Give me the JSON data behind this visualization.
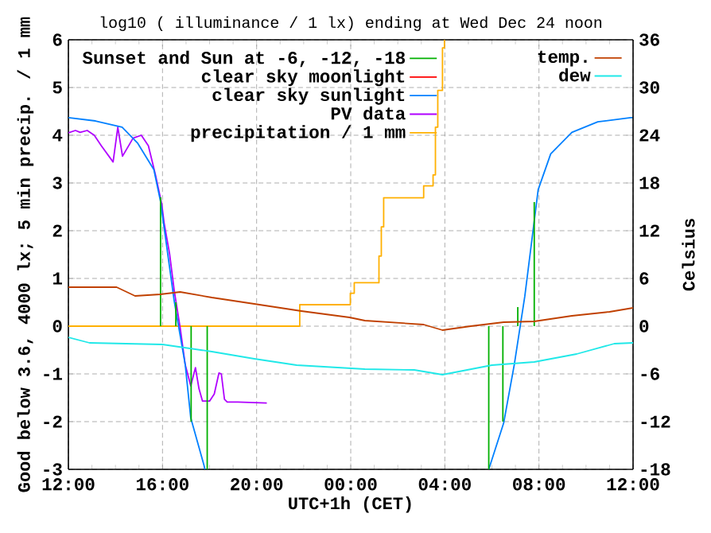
{
  "chart_data": {
    "type": "line",
    "title": "log10 ( illuminance / 1 lx) ending at Wed Dec 24 noon",
    "xlabel": "UTC+1h (CET)",
    "ylabel": "Good below 3.6, 4000 lx; 5 min precip. / 1 mm",
    "y2label": "Celsius",
    "xlim": [
      "--12-23T12:00",
      "--12-24T12:00"
    ],
    "xticks": [
      {
        "value": "--12-23T12:00",
        "label": "12:00"
      },
      {
        "value": "--12-23T16:00",
        "label": "16:00"
      },
      {
        "value": "--12-23T20:00",
        "label": "20:00"
      },
      {
        "value": "--12-24T00:00",
        "label": "00:00"
      },
      {
        "value": "--12-24T04:00",
        "label": "04:00"
      },
      {
        "value": "--12-24T08:00",
        "label": "08:00"
      },
      {
        "value": "--12-24T12:00",
        "label": "12:00"
      }
    ],
    "ylim": [
      -3,
      6
    ],
    "yticks": [
      -3,
      -2,
      -1,
      0,
      1,
      2,
      3,
      4,
      5,
      6
    ],
    "y2lim": [
      -18,
      36
    ],
    "y2ticks": [
      -18,
      -12,
      -6,
      0,
      6,
      12,
      18,
      24,
      30,
      36
    ],
    "grid": true,
    "legend": "top",
    "series": [
      {
        "name": "Sunset and Sun at -6, -12, -18",
        "color": "#00b000",
        "x": [
          "--12-23T15:55",
          "--12-23T15:55",
          null,
          "--12-23T16:34",
          "--12-23T16:34",
          null,
          "--12-23T17:13",
          "--12-23T17:13",
          null,
          "--12-23T17:54",
          "--12-23T17:54",
          null,
          "--12-24T05:52",
          "--12-24T05:52",
          null,
          "--12-24T06:28",
          "--12-24T06:28",
          null,
          "--12-24T07:06",
          "--12-24T07:06",
          null,
          "--12-24T07:48",
          "--12-24T07:48"
        ],
        "values": [
          0,
          2.7,
          null,
          0,
          0.5,
          null,
          0,
          -2,
          null,
          0,
          -3,
          null,
          0,
          -3,
          null,
          0,
          -2,
          null,
          0,
          0.4,
          null,
          0,
          2.6
        ]
      },
      {
        "name": "clear sky moonlight",
        "color": "#ff0000"
      },
      {
        "name": "clear sky sunlight",
        "color": "#0080ff",
        "x": [
          "--12-23T12:00",
          "--12-23T13:09",
          "--12-23T14:17",
          "--12-23T14:57",
          "--12-23T15:38",
          "--12-23T15:55",
          "--12-23T16:30",
          "--12-23T16:58",
          "--12-23T17:12",
          "--12-23T17:46",
          "--12-23T17:48",
          null,
          "--12-24T05:52",
          "--12-24T06:30",
          "--12-24T06:57",
          "--12-24T07:24",
          "--12-24T07:58",
          "--12-24T08:30",
          "--12-24T09:24",
          "--12-24T10:30",
          "--12-24T11:54",
          "--12-24T12:00"
        ],
        "values": [
          4.37,
          4.3,
          4.17,
          3.83,
          3.28,
          2.61,
          0.52,
          -0.81,
          -1.92,
          -2.92,
          -3,
          null,
          -3,
          -2.03,
          -0.81,
          0.63,
          2.86,
          3.61,
          4.06,
          4.28,
          4.37,
          4.37
        ]
      },
      {
        "name": "PV data",
        "color": "#b000ff",
        "x": [
          "--12-23T12:00",
          "--12-23T12:18",
          "--12-23T12:30",
          "--12-23T12:48",
          "--12-23T13:06",
          "--12-23T13:24",
          "--12-23T13:54",
          "--12-23T14:06",
          "--12-23T14:18",
          "--12-23T14:45",
          "--12-23T15:06",
          "--12-23T15:24",
          "--12-23T15:42",
          "--12-23T15:58",
          "--12-23T16:04",
          "--12-23T16:18",
          "--12-23T16:30",
          "--12-23T16:45",
          "--12-23T16:58",
          "--12-23T17:12",
          "--12-23T17:24",
          "--12-23T17:33",
          "--12-23T17:42",
          "--12-23T18:00",
          "--12-23T18:12",
          "--12-23T18:24",
          "--12-23T18:30",
          "--12-23T18:38",
          "--12-23T18:45",
          "--12-23T19:12",
          "--12-23T20:26"
        ],
        "values": [
          4.05,
          4.1,
          4.06,
          4.1,
          4.0,
          3.78,
          3.44,
          4.17,
          3.56,
          3.94,
          4.0,
          3.78,
          3.17,
          2.56,
          2.17,
          1.52,
          0.74,
          -0.03,
          -0.81,
          -1.25,
          -0.87,
          -1.31,
          -1.57,
          -1.57,
          -1.42,
          -0.98,
          -1.0,
          -1.53,
          -1.59,
          -1.59,
          -1.61
        ]
      },
      {
        "name": "precipitation / 1 mm",
        "color": "#ffb000",
        "type": "step",
        "x": [
          "--12-23T12:00",
          "--12-23T21:50",
          "--12-23T23:59",
          "--12-24T00:09",
          "--12-24T00:16",
          "--12-24T01:12",
          "--12-24T01:18",
          "--12-24T01:24",
          "--12-24T01:58",
          "--12-24T03:06",
          "--12-24T03:30",
          "--12-24T03:36",
          "--12-24T03:42",
          "--12-24T03:54",
          "--12-24T03:59"
        ],
        "values": [
          0,
          0.45,
          0.69,
          0.91,
          0.91,
          1.47,
          2.08,
          2.69,
          2.69,
          2.94,
          3.17,
          4.17,
          4.94,
          5.83,
          6
        ]
      },
      {
        "name": "temp.",
        "color": "#c04000",
        "axis": "y2",
        "x": [
          "--12-23T12:00",
          "--12-23T14:03",
          "--12-23T14:50",
          "--12-23T15:54",
          "--12-23T16:45",
          "--12-23T18:06",
          "--12-23T19:54",
          "--12-23T21:54",
          "--12-23T23:57",
          "--12-24T00:36",
          "--12-24T03:06",
          "--12-24T03:54",
          "--12-24T05:06",
          "--12-24T06:30",
          "--12-24T07:48",
          "--12-24T09:24",
          "--12-24T11:00",
          "--12-24T12:00"
        ],
        "values": [
          4.9,
          4.9,
          3.8,
          4.0,
          4.3,
          3.6,
          2.8,
          1.9,
          1.1,
          0.7,
          0.2,
          -0.5,
          0,
          0.5,
          0.6,
          1.3,
          1.8,
          2.3
        ]
      },
      {
        "name": "dew",
        "color": "#20e8e8",
        "axis": "y2",
        "x": [
          "--12-23T12:00",
          "--12-23T12:54",
          "--12-23T16:00",
          "--12-23T18:06",
          "--12-23T19:54",
          "--12-23T21:42",
          "--12-24T00:36",
          "--12-24T02:42",
          "--12-24T03:54",
          "--12-24T06:00",
          "--12-24T07:48",
          "--12-24T09:36",
          "--12-24T11:12",
          "--12-24T12:00"
        ],
        "values": [
          -1.4,
          -2.1,
          -2.3,
          -3.2,
          -4.1,
          -4.9,
          -5.4,
          -5.5,
          -6.1,
          -4.9,
          -4.5,
          -3.5,
          -2.2,
          -2.1
        ]
      }
    ]
  }
}
